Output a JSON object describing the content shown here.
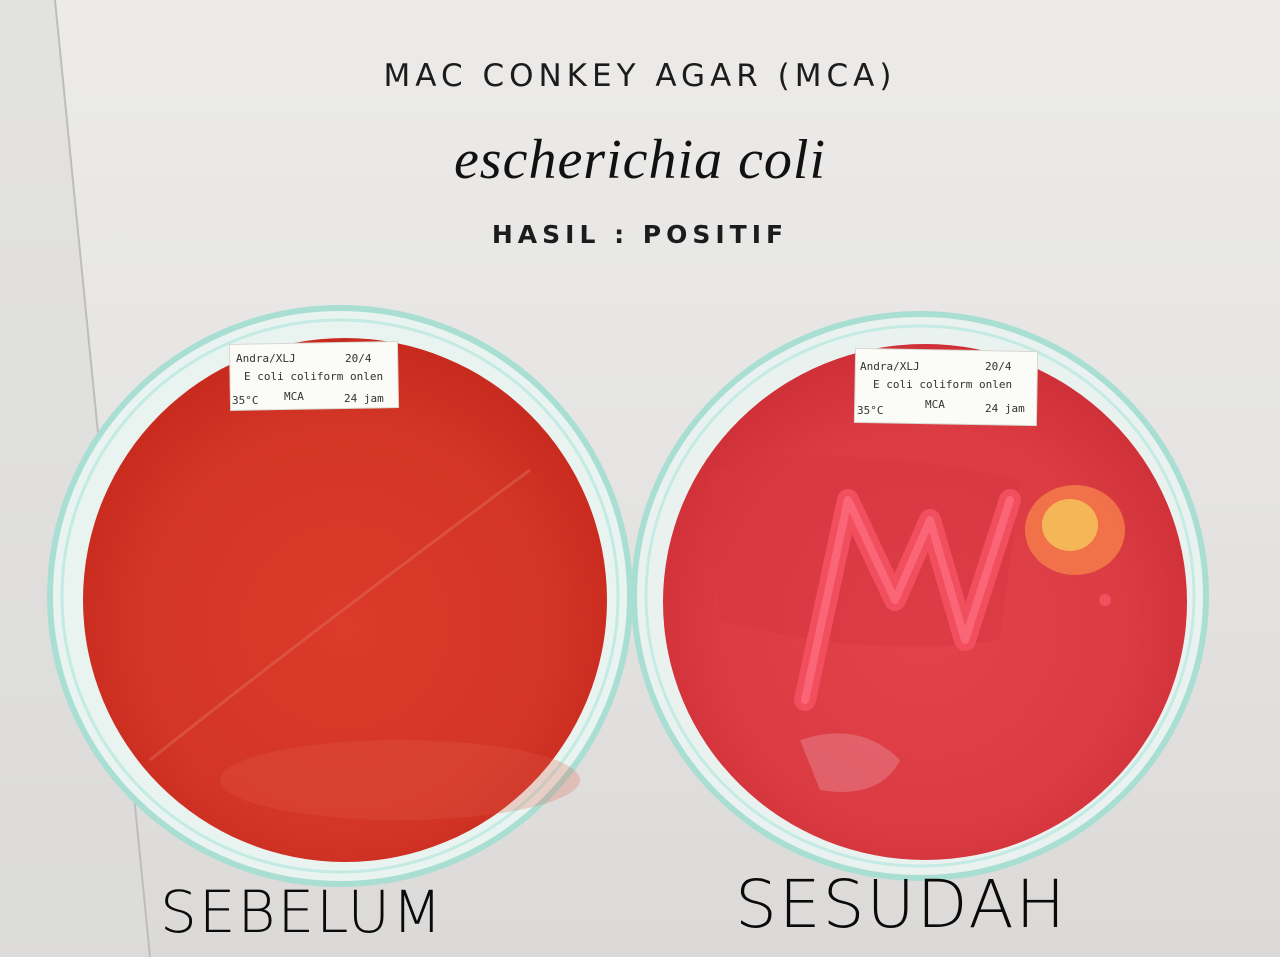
{
  "title": "MAC CONKEY AGAR (MCA)",
  "species": "escherichia coli",
  "result": "HASIL : POSITIF",
  "captions": {
    "before": "SEBELUM",
    "after": "SESUDAH"
  },
  "labels": {
    "left": {
      "line1a": "Andra/XLJ",
      "line1b": "20/4",
      "line2": "E coli coliform onlen",
      "line3a": "35°C",
      "line3b": "MCA",
      "line3c": "24 jam"
    },
    "right": {
      "line1a": "Andra/XLJ",
      "line1b": "20/4",
      "line2": "E coli coliform onlen",
      "line3a": "35°C",
      "line3b": "MCA",
      "line3c": "24 jam"
    }
  },
  "colors": {
    "agar": "#d8392c",
    "agar_dark": "#c42a20",
    "colony": "#f0485a",
    "glass": "#9fd9cf"
  }
}
